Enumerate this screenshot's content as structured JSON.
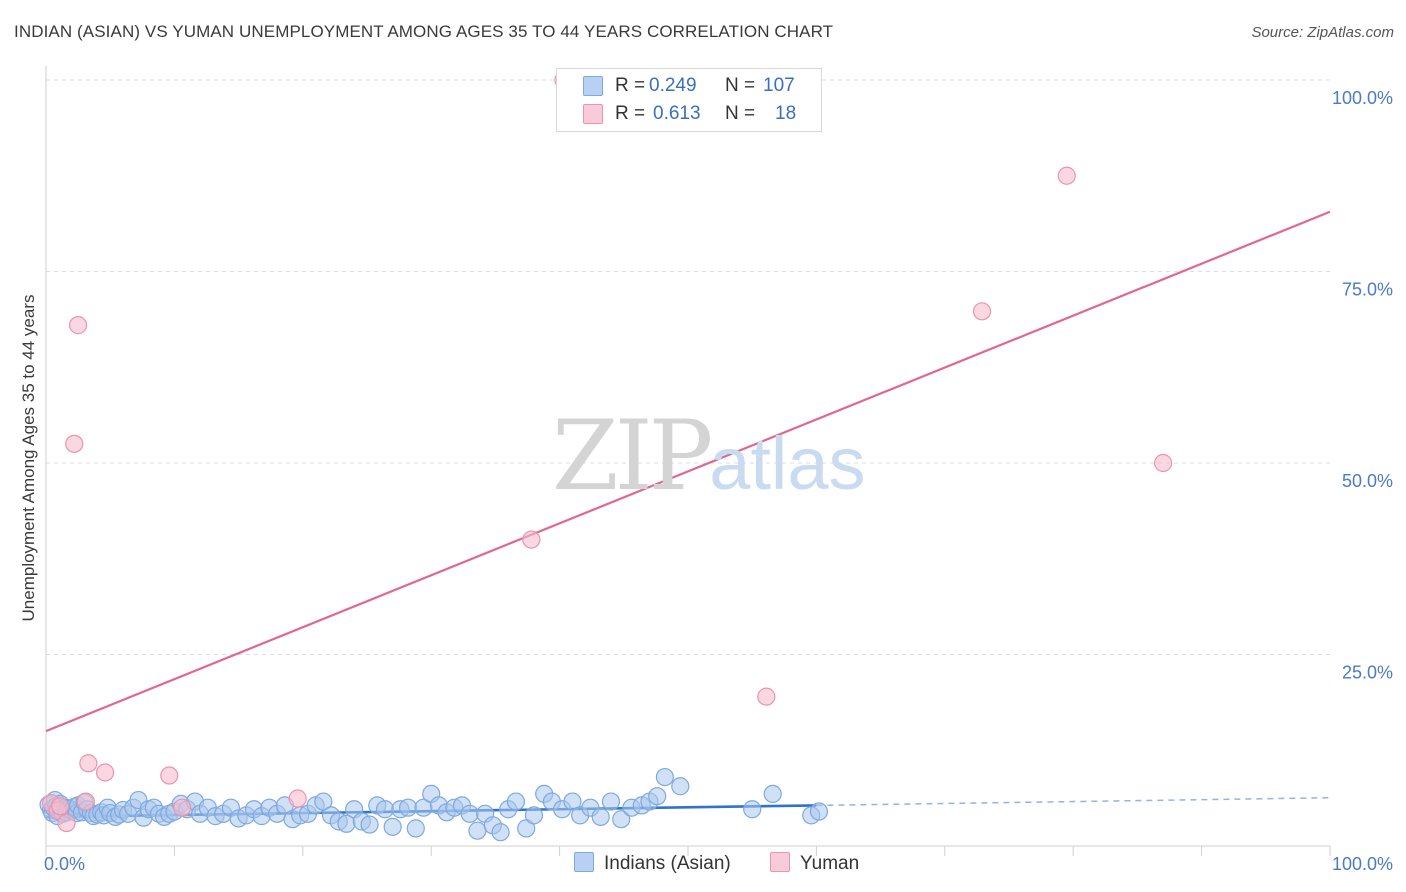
{
  "header": {
    "title": "INDIAN (ASIAN) VS YUMAN UNEMPLOYMENT AMONG AGES 35 TO 44 YEARS CORRELATION CHART",
    "source": "Source: ZipAtlas.com"
  },
  "legend_top": {
    "series": [
      {
        "r_label": "R =",
        "r_value": "0.249",
        "n_label": "N =",
        "n_value": "107"
      },
      {
        "r_label": "R =",
        "r_value": "0.613",
        "n_label": "N =",
        "n_value": "18"
      }
    ]
  },
  "legend_bottom": {
    "items": [
      {
        "label": "Indians (Asian)"
      },
      {
        "label": "Yuman"
      }
    ]
  },
  "watermark": {
    "zip": "ZIP",
    "atlas": "atlas"
  },
  "colors": {
    "blue_fill": "#a9c6ec",
    "blue_stroke": "#7ea9de",
    "blue_line": "#2f74cc",
    "pink_fill": "#f6bccd",
    "pink_stroke": "#eb94b0",
    "pink_line": "#e2678f",
    "grid": "#dddddd",
    "tick_text": "#4a7bc4"
  },
  "chart_data": {
    "type": "scatter",
    "title": "INDIAN (ASIAN) VS YUMAN UNEMPLOYMENT AMONG AGES 35 TO 44 YEARS CORRELATION CHART",
    "xlabel": "",
    "ylabel": "Unemployment Among Ages 35 to 44 years",
    "xlim": [
      0,
      100
    ],
    "ylim": [
      0,
      100
    ],
    "x_tick_labels": [
      "0.0%",
      "100.0%"
    ],
    "y_ticks": [
      25,
      50,
      75,
      100
    ],
    "y_tick_labels": [
      "25.0%",
      "50.0%",
      "75.0%",
      "100.0%"
    ],
    "grid": true,
    "series": [
      {
        "name": "Indians (Asian)",
        "R": 0.249,
        "N": 107,
        "trend": {
          "x0": 0,
          "y0": 3.8,
          "x1": 60,
          "y1": 5.3,
          "dash_x1": 100,
          "dash_y1": 6.3
        },
        "points": [
          [
            0.2,
            5.4
          ],
          [
            0.4,
            4.7
          ],
          [
            0.5,
            4.3
          ],
          [
            0.6,
            5.0
          ],
          [
            0.7,
            6.0
          ],
          [
            0.8,
            5.2
          ],
          [
            0.9,
            3.9
          ],
          [
            1.0,
            4.8
          ],
          [
            1.1,
            5.5
          ],
          [
            1.2,
            4.5
          ],
          [
            1.3,
            4.2
          ],
          [
            1.5,
            5.0
          ],
          [
            1.6,
            4.4
          ],
          [
            1.8,
            4.9
          ],
          [
            2.0,
            4.6
          ],
          [
            2.2,
            5.1
          ],
          [
            2.4,
            4.3
          ],
          [
            2.5,
            5.3
          ],
          [
            2.8,
            4.4
          ],
          [
            3.0,
            5.7
          ],
          [
            3.2,
            4.8
          ],
          [
            3.5,
            4.3
          ],
          [
            3.7,
            3.9
          ],
          [
            4.0,
            4.1
          ],
          [
            4.3,
            4.4
          ],
          [
            4.5,
            4.0
          ],
          [
            4.8,
            5.0
          ],
          [
            5.0,
            4.3
          ],
          [
            5.4,
            3.8
          ],
          [
            5.7,
            4.1
          ],
          [
            6.0,
            4.7
          ],
          [
            6.4,
            4.2
          ],
          [
            6.8,
            5.0
          ],
          [
            7.2,
            6.0
          ],
          [
            7.6,
            3.7
          ],
          [
            8.0,
            4.8
          ],
          [
            8.4,
            5.0
          ],
          [
            8.8,
            4.2
          ],
          [
            9.2,
            3.8
          ],
          [
            9.6,
            4.2
          ],
          [
            10.0,
            4.5
          ],
          [
            10.5,
            5.5
          ],
          [
            11.0,
            4.8
          ],
          [
            11.6,
            5.8
          ],
          [
            12.0,
            4.2
          ],
          [
            12.6,
            5.0
          ],
          [
            13.2,
            3.9
          ],
          [
            13.8,
            4.2
          ],
          [
            14.4,
            5.0
          ],
          [
            15.0,
            3.6
          ],
          [
            15.6,
            4.0
          ],
          [
            16.2,
            4.8
          ],
          [
            16.8,
            3.9
          ],
          [
            17.4,
            5.0
          ],
          [
            18.0,
            4.2
          ],
          [
            18.6,
            5.3
          ],
          [
            19.2,
            3.5
          ],
          [
            19.8,
            4.0
          ],
          [
            20.4,
            4.2
          ],
          [
            21.0,
            5.3
          ],
          [
            21.6,
            5.8
          ],
          [
            22.2,
            4.0
          ],
          [
            22.8,
            3.2
          ],
          [
            23.4,
            2.9
          ],
          [
            24.0,
            4.8
          ],
          [
            24.6,
            3.2
          ],
          [
            25.2,
            2.8
          ],
          [
            25.8,
            5.3
          ],
          [
            26.4,
            4.8
          ],
          [
            27.0,
            2.5
          ],
          [
            27.6,
            4.8
          ],
          [
            28.2,
            5.0
          ],
          [
            28.8,
            2.3
          ],
          [
            29.4,
            5.0
          ],
          [
            30.0,
            6.8
          ],
          [
            30.6,
            5.3
          ],
          [
            31.2,
            4.4
          ],
          [
            31.8,
            5.0
          ],
          [
            32.4,
            5.3
          ],
          [
            33.0,
            4.2
          ],
          [
            33.6,
            2.0
          ],
          [
            34.2,
            4.2
          ],
          [
            34.8,
            2.7
          ],
          [
            35.4,
            1.8
          ],
          [
            36.0,
            4.8
          ],
          [
            36.6,
            5.8
          ],
          [
            37.4,
            2.3
          ],
          [
            38.0,
            4.0
          ],
          [
            38.8,
            6.8
          ],
          [
            39.4,
            5.8
          ],
          [
            40.2,
            4.8
          ],
          [
            41.0,
            5.8
          ],
          [
            41.6,
            4.0
          ],
          [
            42.4,
            5.0
          ],
          [
            43.2,
            3.8
          ],
          [
            44.0,
            5.8
          ],
          [
            44.8,
            3.5
          ],
          [
            45.6,
            5.0
          ],
          [
            46.4,
            5.3
          ],
          [
            47.0,
            5.8
          ],
          [
            47.6,
            6.5
          ],
          [
            48.2,
            9.0
          ],
          [
            49.4,
            7.8
          ],
          [
            55.0,
            4.8
          ],
          [
            56.6,
            6.8
          ],
          [
            59.6,
            4.0
          ],
          [
            60.2,
            4.5
          ]
        ]
      },
      {
        "name": "Yuman",
        "R": 0.613,
        "N": 18,
        "trend": {
          "x0": 0,
          "y0": 15.0,
          "x1": 100,
          "y1": 82.8
        },
        "points": [
          [
            0.4,
            5.6
          ],
          [
            0.9,
            4.6
          ],
          [
            1.1,
            5.2
          ],
          [
            1.6,
            3.0
          ],
          [
            2.2,
            52.5
          ],
          [
            2.5,
            68.0
          ],
          [
            3.1,
            5.8
          ],
          [
            3.3,
            10.8
          ],
          [
            4.6,
            9.6
          ],
          [
            9.6,
            9.2
          ],
          [
            10.6,
            5.0
          ],
          [
            19.6,
            6.2
          ],
          [
            37.8,
            40.0
          ],
          [
            40.3,
            100.0
          ],
          [
            56.1,
            19.5
          ],
          [
            72.9,
            69.8
          ],
          [
            79.5,
            87.5
          ],
          [
            87.0,
            50.0
          ]
        ]
      }
    ]
  }
}
